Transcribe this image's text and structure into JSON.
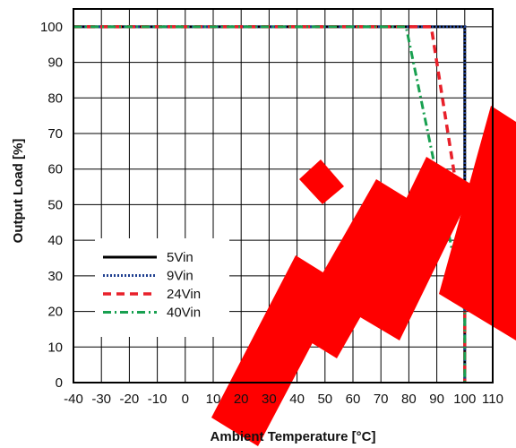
{
  "chart_data": {
    "type": "line",
    "title": "",
    "xlabel": "Ambient Temperature [°C]",
    "ylabel": "Output Load [%]",
    "xlim": [
      -40,
      110
    ],
    "ylim": [
      0,
      105
    ],
    "x_ticks": [
      "-40",
      "-30",
      "-20",
      "-10",
      "0",
      "10",
      "20",
      "30",
      "40",
      "50",
      "60",
      "70",
      "80",
      "90",
      "100",
      "110"
    ],
    "y_ticks": [
      "0",
      "10",
      "20",
      "30",
      "40",
      "50",
      "60",
      "70",
      "80",
      "90",
      "100"
    ],
    "grid": true,
    "legend_position": "lower-left",
    "series": [
      {
        "name": "5Vin",
        "color": "#000000",
        "style": "solid",
        "points": [
          [
            -40,
            100
          ],
          [
            100,
            100
          ],
          [
            100,
            0
          ]
        ]
      },
      {
        "name": "9Vin",
        "color": "#1f3f8f",
        "style": "dotted",
        "points": [
          [
            -40,
            100
          ],
          [
            100,
            100
          ],
          [
            100,
            0
          ]
        ]
      },
      {
        "name": "24Vin",
        "color": "#e8202a",
        "style": "dashed",
        "points": [
          [
            -40,
            100
          ],
          [
            88,
            100
          ],
          [
            100,
            40
          ],
          [
            100,
            0
          ]
        ]
      },
      {
        "name": "40Vin",
        "color": "#18a050",
        "style": "dashdot",
        "points": [
          [
            -40,
            100
          ],
          [
            79,
            100
          ],
          [
            100,
            20
          ],
          [
            100,
            0
          ]
        ]
      }
    ],
    "watermark_color": "#ff0000"
  }
}
